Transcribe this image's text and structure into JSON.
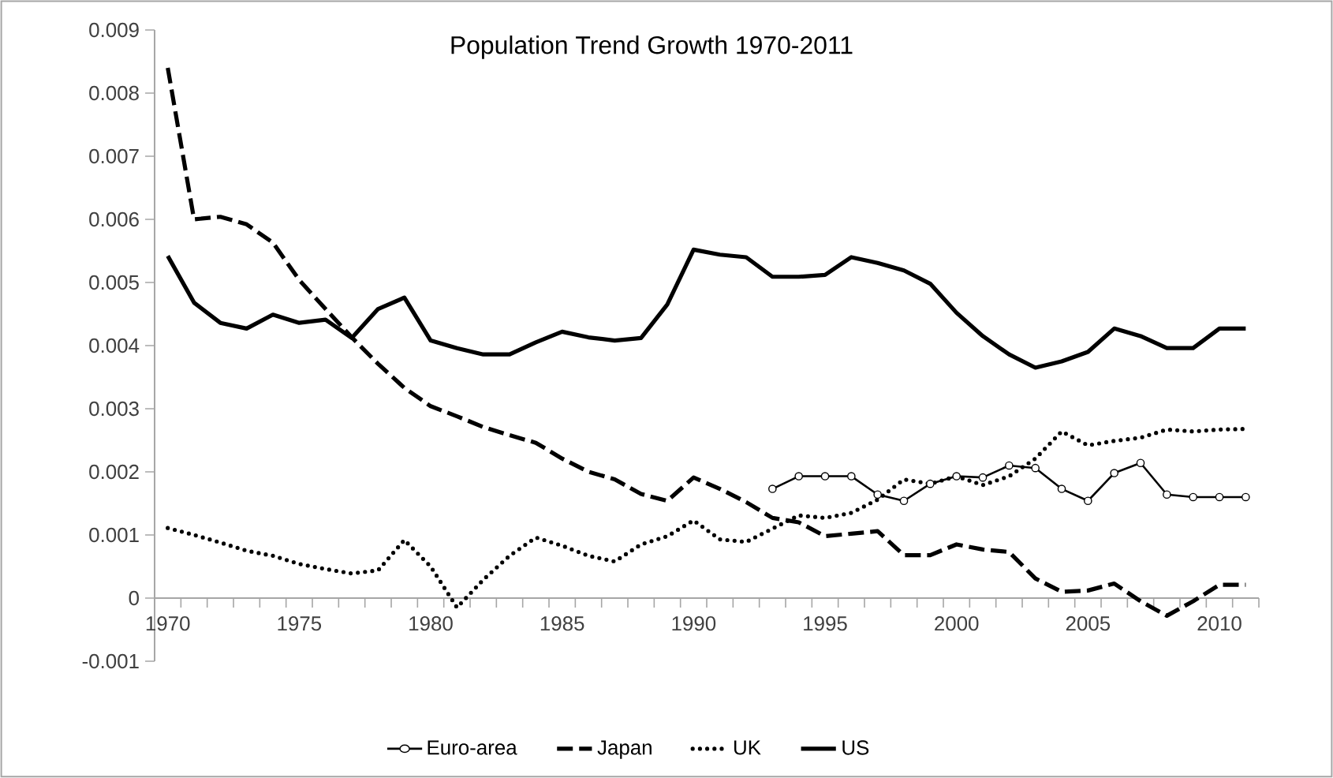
{
  "chart_data": {
    "type": "line",
    "title": "Population Trend Growth 1970-2011",
    "x": [
      1970,
      1971,
      1972,
      1973,
      1974,
      1975,
      1976,
      1977,
      1978,
      1979,
      1980,
      1981,
      1982,
      1983,
      1984,
      1985,
      1986,
      1987,
      1988,
      1989,
      1990,
      1991,
      1992,
      1993,
      1994,
      1995,
      1996,
      1997,
      1998,
      1999,
      2000,
      2001,
      2002,
      2003,
      2004,
      2005,
      2006,
      2007,
      2008,
      2009,
      2010,
      2011
    ],
    "xlim": [
      1969.5,
      2011.5
    ],
    "xticks": [
      1970,
      1975,
      1980,
      1985,
      1990,
      1995,
      2000,
      2005,
      2010
    ],
    "ylim": [
      -0.001,
      0.009
    ],
    "yticks": [
      -0.001,
      0,
      0.001,
      0.002,
      0.003,
      0.004,
      0.005,
      0.006,
      0.007,
      0.008,
      0.009
    ],
    "legend": "bottom",
    "series": [
      {
        "name": "Euro-area",
        "color": "#000000",
        "line_style": "solid",
        "marker": "circle",
        "values": [
          null,
          null,
          null,
          null,
          null,
          null,
          null,
          null,
          null,
          null,
          null,
          null,
          null,
          null,
          null,
          null,
          null,
          null,
          null,
          null,
          null,
          null,
          null,
          0.00173,
          0.00193,
          0.00193,
          0.00193,
          0.00164,
          0.00154,
          0.00181,
          0.00193,
          0.00191,
          0.0021,
          0.00206,
          0.00173,
          0.00154,
          0.00198,
          0.00214,
          0.00164,
          0.0016,
          0.0016,
          0.0016
        ]
      },
      {
        "name": "Japan",
        "color": "#000000",
        "line_style": "dashed",
        "marker": "none",
        "values": [
          0.0084,
          0.006,
          0.00604,
          0.00592,
          0.00563,
          0.00504,
          0.00458,
          0.00413,
          0.00371,
          0.00333,
          0.00304,
          0.00288,
          0.00271,
          0.00258,
          0.00246,
          0.00221,
          0.002,
          0.00188,
          0.00165,
          0.00154,
          0.00191,
          0.00173,
          0.00152,
          0.00127,
          0.0012,
          0.00098,
          0.00102,
          0.00106,
          0.00068,
          0.00068,
          0.00085,
          0.00077,
          0.00073,
          0.00031,
          0.0001,
          0.00012,
          0.00023,
          -5e-05,
          -0.00028,
          -5e-05,
          0.00021,
          0.00021
        ]
      },
      {
        "name": "UK",
        "color": "#000000",
        "line_style": "dotted",
        "marker": "none",
        "values": [
          0.00111,
          0.001,
          0.00088,
          0.00075,
          0.00067,
          0.00054,
          0.00046,
          0.00039,
          0.00044,
          0.00092,
          0.0005,
          -0.00015,
          0.00029,
          0.00067,
          0.00096,
          0.00083,
          0.00067,
          0.00058,
          0.00085,
          0.00098,
          0.00123,
          0.00093,
          0.00089,
          0.0011,
          0.00131,
          0.00127,
          0.00135,
          0.00156,
          0.00188,
          0.00181,
          0.00193,
          0.00179,
          0.00193,
          0.00221,
          0.00264,
          0.00242,
          0.00249,
          0.00254,
          0.00267,
          0.00264,
          0.00267,
          0.00268
        ]
      },
      {
        "name": "US",
        "color": "#000000",
        "line_style": "solid",
        "marker": "none",
        "values": [
          0.00542,
          0.00468,
          0.00436,
          0.00427,
          0.00449,
          0.00436,
          0.00441,
          0.00412,
          0.00458,
          0.00476,
          0.00408,
          0.00396,
          0.00386,
          0.00386,
          0.00405,
          0.00422,
          0.00413,
          0.00408,
          0.00412,
          0.00465,
          0.00552,
          0.00544,
          0.0054,
          0.00509,
          0.00509,
          0.00512,
          0.0054,
          0.00531,
          0.00519,
          0.00498,
          0.00452,
          0.00415,
          0.00386,
          0.00365,
          0.00375,
          0.0039,
          0.00427,
          0.00415,
          0.00396,
          0.00396,
          0.00427,
          0.00427
        ]
      }
    ]
  }
}
